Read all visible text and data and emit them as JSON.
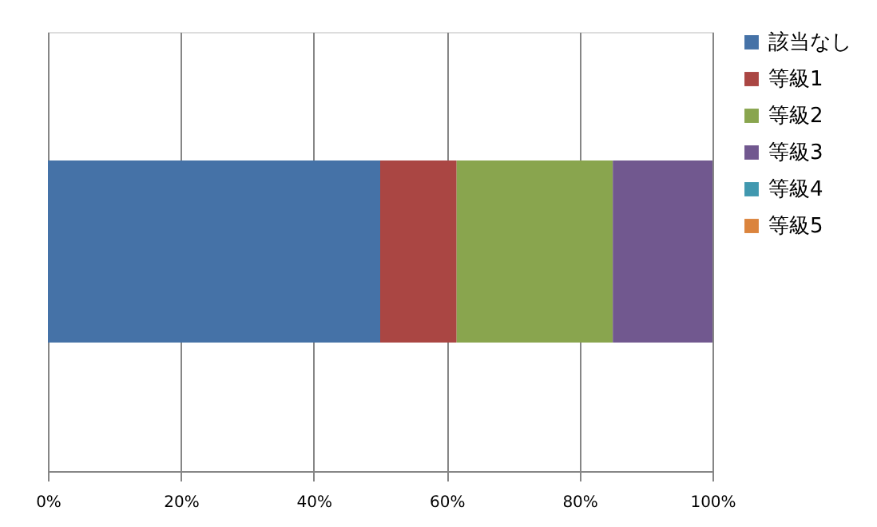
{
  "chart_data": {
    "type": "bar",
    "orientation": "horizontal",
    "stacked": true,
    "categories": [
      null
    ],
    "series": [
      {
        "name": "該当なし",
        "color": "#4572a7",
        "values": [
          50
        ]
      },
      {
        "name": "等級1",
        "color": "#aa4643",
        "values": [
          11.5
        ]
      },
      {
        "name": "等級2",
        "color": "#89a54e",
        "values": [
          23.5
        ]
      },
      {
        "name": "等級3",
        "color": "#71588f",
        "values": [
          15
        ]
      },
      {
        "name": "等級4",
        "color": "#4198af",
        "values": [
          0
        ]
      },
      {
        "name": "等級5",
        "color": "#db843d",
        "values": [
          0
        ]
      }
    ],
    "xlim": [
      0,
      100
    ],
    "xticks": [
      {
        "value": 0,
        "label": "0%"
      },
      {
        "value": 20,
        "label": "20%"
      },
      {
        "value": 40,
        "label": "40%"
      },
      {
        "value": 60,
        "label": "60%"
      },
      {
        "value": 80,
        "label": "80%"
      },
      {
        "value": 100,
        "label": "100%"
      }
    ],
    "grid": "x",
    "legend": "right"
  }
}
